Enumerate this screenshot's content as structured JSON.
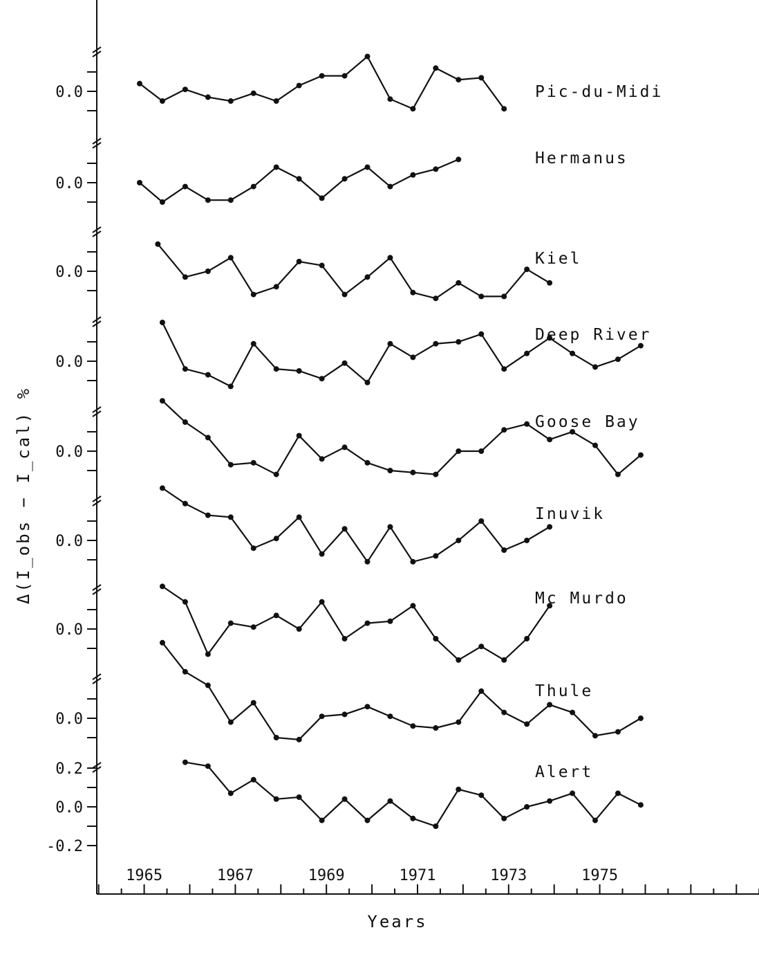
{
  "chart_data": {
    "type": "line",
    "xlabel": "Years",
    "ylabel": "Δ(I_obs − I_cal) %",
    "x_ticks": [
      "1965",
      "1967",
      "1969",
      "1971",
      "1973",
      "1975"
    ],
    "xlim": [
      1964.2,
      1978.8
    ],
    "ylim_per_panel": [
      -0.3,
      0.3
    ],
    "panel_y_tick": "0.0",
    "bottom_panel_y_ticks": [
      "0.2",
      "0.0",
      "-0.2"
    ],
    "grid": false,
    "series": [
      {
        "name": "Pic-du-Midi",
        "x": [
          1964.9,
          1965.4,
          1965.9,
          1966.4,
          1966.9,
          1967.4,
          1967.9,
          1968.4,
          1968.9,
          1969.4,
          1969.9,
          1970.4,
          1970.9,
          1971.4,
          1971.9,
          1972.4,
          1972.9
        ],
        "values": [
          0.04,
          -0.05,
          0.01,
          -0.03,
          -0.05,
          -0.01,
          -0.05,
          0.03,
          0.08,
          0.08,
          0.18,
          -0.04,
          -0.09,
          0.12,
          0.06,
          0.07,
          -0.09
        ]
      },
      {
        "name": "Hermanus",
        "x": [
          1964.9,
          1965.4,
          1965.9,
          1966.4,
          1966.9,
          1967.4,
          1967.9,
          1968.4,
          1968.9,
          1969.4,
          1969.9,
          1970.4,
          1970.9,
          1971.4,
          1971.9
        ],
        "values": [
          0.0,
          -0.1,
          -0.02,
          -0.09,
          -0.09,
          -0.02,
          0.08,
          0.02,
          -0.08,
          0.02,
          0.08,
          -0.02,
          0.04,
          0.07,
          0.12
        ]
      },
      {
        "name": "Kiel",
        "x": [
          1965.3,
          1965.9,
          1966.4,
          1966.9,
          1967.4,
          1967.9,
          1968.4,
          1968.9,
          1969.4,
          1969.9,
          1970.4,
          1970.9,
          1971.4,
          1971.9,
          1972.4,
          1972.9,
          1973.4,
          1973.9
        ],
        "values": [
          0.14,
          -0.03,
          0.0,
          0.07,
          -0.12,
          -0.08,
          0.05,
          0.03,
          -0.12,
          -0.03,
          0.07,
          -0.11,
          -0.14,
          -0.06,
          -0.13,
          -0.13,
          0.01,
          -0.06
        ]
      },
      {
        "name": "Deep River",
        "x": [
          1965.4,
          1965.9,
          1966.4,
          1966.9,
          1967.4,
          1967.9,
          1968.4,
          1968.9,
          1969.4,
          1969.9,
          1970.4,
          1970.9,
          1971.4,
          1971.9,
          1972.4,
          1972.9,
          1973.4,
          1973.9,
          1974.4,
          1974.9,
          1975.4,
          1975.9
        ],
        "values": [
          0.2,
          -0.04,
          -0.07,
          -0.13,
          0.09,
          -0.04,
          -0.05,
          -0.09,
          -0.01,
          -0.11,
          0.09,
          0.02,
          0.09,
          0.1,
          0.14,
          -0.04,
          0.04,
          0.12,
          0.04,
          -0.03,
          0.01,
          0.08
        ]
      },
      {
        "name": "Goose Bay",
        "x": [
          1965.4,
          1965.9,
          1966.4,
          1966.9,
          1967.4,
          1967.9,
          1968.4,
          1968.9,
          1969.4,
          1969.9,
          1970.4,
          1970.9,
          1971.4,
          1971.9,
          1972.4,
          1972.9,
          1973.4,
          1973.9,
          1974.4,
          1974.9,
          1975.4,
          1975.9
        ],
        "values": [
          0.26,
          0.15,
          0.07,
          -0.07,
          -0.06,
          -0.12,
          0.08,
          -0.04,
          0.02,
          -0.06,
          -0.1,
          -0.11,
          -0.12,
          0.0,
          0.0,
          0.11,
          0.14,
          0.06,
          0.1,
          0.03,
          -0.12,
          -0.02
        ]
      },
      {
        "name": "Inuvik",
        "x": [
          1965.4,
          1965.9,
          1966.4,
          1966.9,
          1967.4,
          1967.9,
          1968.4,
          1968.9,
          1969.4,
          1969.9,
          1970.4,
          1970.9,
          1971.4,
          1971.9,
          1972.4,
          1972.9,
          1973.4,
          1973.9
        ],
        "values": [
          0.27,
          0.19,
          0.13,
          0.12,
          -0.04,
          0.01,
          0.12,
          -0.07,
          0.06,
          -0.11,
          0.07,
          -0.11,
          -0.08,
          0.0,
          0.1,
          -0.05,
          0.0,
          0.07
        ]
      },
      {
        "name": "Mc Murdo",
        "x": [
          1965.4,
          1965.9,
          1966.4,
          1966.9,
          1967.4,
          1967.9,
          1968.4,
          1968.9,
          1969.4,
          1969.9,
          1970.4,
          1970.9,
          1971.4,
          1971.9,
          1972.4,
          1972.9,
          1973.4,
          1973.9
        ],
        "values": [
          0.22,
          0.14,
          -0.13,
          0.03,
          0.01,
          0.07,
          0.0,
          0.14,
          -0.05,
          0.03,
          0.04,
          0.12,
          -0.05,
          -0.16,
          -0.09,
          -0.16,
          -0.05,
          0.12
        ]
      },
      {
        "name": "Thule",
        "x": [
          1965.4,
          1965.9,
          1966.4,
          1966.9,
          1967.4,
          1967.9,
          1968.4,
          1968.9,
          1969.4,
          1969.9,
          1970.4,
          1970.9,
          1971.4,
          1971.9,
          1972.4,
          1972.9,
          1973.4,
          1973.9,
          1974.4,
          1974.9,
          1975.4,
          1975.9
        ],
        "values": [
          0.39,
          0.24,
          0.17,
          -0.02,
          0.08,
          -0.1,
          -0.11,
          0.01,
          0.02,
          0.06,
          0.01,
          -0.04,
          -0.05,
          -0.02,
          0.14,
          0.03,
          -0.03,
          0.07,
          0.03,
          -0.09,
          -0.07,
          0.0
        ]
      },
      {
        "name": "Alert",
        "x": [
          1965.9,
          1966.4,
          1966.9,
          1967.4,
          1967.9,
          1968.4,
          1968.9,
          1969.4,
          1969.9,
          1970.4,
          1970.9,
          1971.4,
          1971.9,
          1972.4,
          1972.9,
          1973.4,
          1973.9,
          1974.4,
          1974.9,
          1975.4,
          1975.9
        ],
        "values": [
          0.23,
          0.21,
          0.07,
          0.14,
          0.04,
          0.05,
          -0.07,
          0.04,
          -0.07,
          0.03,
          -0.06,
          -0.1,
          0.09,
          0.06,
          -0.06,
          0.0,
          0.03,
          0.07,
          -0.07,
          0.07,
          0.01
        ]
      }
    ]
  }
}
